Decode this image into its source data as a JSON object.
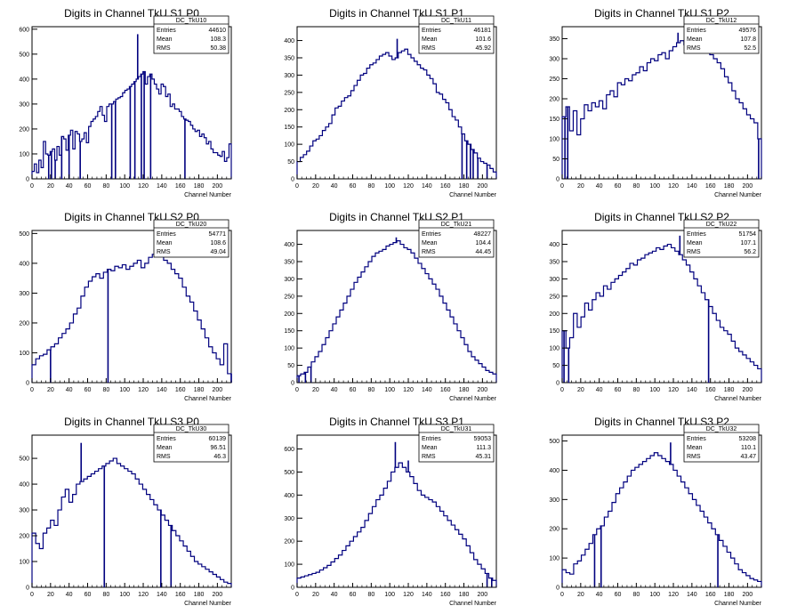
{
  "xlabel": "Channel Number",
  "stat_labels": [
    "Entries",
    "Mean",
    "RMS"
  ],
  "colors": {
    "hist": "#00007f",
    "frame": "#000000",
    "bg": "#ffffff"
  },
  "chart_data": [
    {
      "type": "bar",
      "title": "Digits in Channel TkU S1 P0",
      "hist_name": "DC_TkU10",
      "entries": "44610",
      "mean": "108.3",
      "rms": "50.38",
      "xlabel": "Channel Number",
      "xlim": [
        0,
        215
      ],
      "ylim": [
        0,
        610
      ],
      "xticks": [
        0,
        20,
        40,
        60,
        80,
        100,
        120,
        140,
        160,
        180,
        200
      ],
      "yticks": [
        0,
        100,
        200,
        300,
        400,
        500,
        600
      ],
      "values": [
        30,
        60,
        25,
        75,
        45,
        150,
        100,
        95,
        110,
        120,
        75,
        130,
        95,
        170,
        160,
        115,
        175,
        195,
        120,
        190,
        180,
        150,
        160,
        185,
        145,
        210,
        230,
        240,
        250,
        270,
        290,
        255,
        230,
        290,
        300,
        300,
        310,
        320,
        325,
        330,
        345,
        355,
        360,
        370,
        380,
        390,
        400,
        410,
        420,
        430,
        380,
        410,
        420,
        400,
        380,
        360,
        340,
        380,
        370,
        330,
        340,
        290,
        300,
        280,
        280,
        270,
        250,
        240,
        235,
        230,
        215,
        200,
        190,
        195,
        170,
        180,
        165,
        140,
        150,
        120,
        105,
        105,
        95,
        90,
        110,
        70,
        85,
        140
      ],
      "dips": [
        [
          18,
          0
        ],
        [
          21,
          0
        ],
        [
          25,
          0
        ],
        [
          32,
          0
        ],
        [
          40,
          0
        ],
        [
          52,
          0
        ],
        [
          86,
          0
        ],
        [
          90,
          0
        ],
        [
          106,
          0
        ],
        [
          111,
          0
        ],
        [
          118,
          0
        ],
        [
          121,
          0
        ],
        [
          128,
          0
        ],
        [
          165,
          0
        ]
      ],
      "spikes": [
        [
          114,
          580
        ]
      ]
    },
    {
      "type": "bar",
      "title": "Digits in Channel TkU S1 P1",
      "hist_name": "DC_TkU11",
      "entries": "46181",
      "mean": "101.6",
      "rms": "45.92",
      "xlabel": "Channel Number",
      "xlim": [
        0,
        215
      ],
      "ylim": [
        0,
        440
      ],
      "xticks": [
        0,
        20,
        40,
        60,
        80,
        100,
        120,
        140,
        160,
        180,
        200
      ],
      "yticks": [
        0,
        50,
        100,
        150,
        200,
        250,
        300,
        350,
        400
      ],
      "values": [
        50,
        62,
        70,
        80,
        95,
        110,
        115,
        125,
        140,
        150,
        160,
        185,
        205,
        210,
        225,
        235,
        240,
        255,
        270,
        285,
        300,
        305,
        320,
        330,
        335,
        345,
        355,
        360,
        365,
        355,
        345,
        350,
        365,
        370,
        375,
        360,
        350,
        340,
        330,
        320,
        315,
        300,
        290,
        275,
        250,
        245,
        230,
        220,
        200,
        180,
        170,
        150,
        130,
        110,
        100,
        85,
        75,
        60,
        50,
        45,
        40,
        30,
        20
      ],
      "dips": [
        [
          178,
          0
        ],
        [
          183,
          0
        ],
        [
          187,
          0
        ],
        [
          190,
          0
        ],
        [
          195,
          0
        ],
        [
          205,
          0
        ]
      ],
      "spikes": [
        [
          108,
          405
        ]
      ]
    },
    {
      "type": "bar",
      "title": "Digits in Channel TkU S1 P2",
      "hist_name": "DC_TkU12",
      "entries": "49576",
      "mean": "107.8",
      "rms": "52.5",
      "xlabel": "Channel Number",
      "xlim": [
        0,
        215
      ],
      "ylim": [
        0,
        380
      ],
      "xticks": [
        0,
        20,
        40,
        60,
        80,
        100,
        120,
        140,
        160,
        180,
        200
      ],
      "yticks": [
        0,
        50,
        100,
        150,
        200,
        250,
        300,
        350
      ],
      "values": [
        155,
        180,
        120,
        170,
        110,
        150,
        185,
        170,
        190,
        180,
        195,
        175,
        210,
        220,
        205,
        240,
        235,
        250,
        245,
        260,
        265,
        280,
        270,
        290,
        300,
        295,
        310,
        315,
        300,
        320,
        330,
        340,
        345,
        335,
        330,
        340,
        345,
        330,
        325,
        315,
        310,
        300,
        290,
        275,
        255,
        240,
        220,
        200,
        190,
        175,
        160,
        150,
        140,
        100
      ],
      "dips": [
        [
          3,
          0
        ],
        [
          6,
          0
        ],
        [
          212,
          0
        ]
      ],
      "spikes": [
        [
          125,
          365
        ]
      ]
    },
    {
      "type": "bar",
      "title": "Digits in Channel TkU S2 P0",
      "hist_name": "DC_TkU20",
      "entries": "54771",
      "mean": "108.6",
      "rms": "49.04",
      "xlabel": "Channel Number",
      "xlim": [
        0,
        215
      ],
      "ylim": [
        0,
        510
      ],
      "xticks": [
        0,
        20,
        40,
        60,
        80,
        100,
        120,
        140,
        160,
        180,
        200
      ],
      "yticks": [
        0,
        100,
        200,
        300,
        400,
        500
      ],
      "values": [
        60,
        80,
        90,
        95,
        110,
        120,
        130,
        150,
        165,
        180,
        200,
        230,
        250,
        290,
        320,
        340,
        355,
        365,
        350,
        370,
        380,
        375,
        390,
        385,
        395,
        380,
        390,
        400,
        410,
        385,
        400,
        420,
        430,
        440,
        430,
        410,
        400,
        380,
        365,
        350,
        320,
        290,
        270,
        240,
        210,
        180,
        150,
        120,
        100,
        80,
        60,
        130,
        30
      ],
      "dips": [
        [
          20,
          0
        ],
        [
          82,
          0
        ],
        [
          215,
          0
        ]
      ],
      "spikes": [
        [
          139,
          480
        ]
      ]
    },
    {
      "type": "bar",
      "title": "Digits in Channel TkU S2 P1",
      "hist_name": "DC_TkU21",
      "entries": "48227",
      "mean": "104.4",
      "rms": "44.45",
      "xlabel": "Channel Number",
      "xlim": [
        0,
        215
      ],
      "ylim": [
        0,
        440
      ],
      "xticks": [
        0,
        20,
        40,
        60,
        80,
        100,
        120,
        140,
        160,
        180,
        200
      ],
      "yticks": [
        0,
        50,
        100,
        150,
        200,
        250,
        300,
        350,
        400
      ],
      "values": [
        20,
        25,
        30,
        45,
        60,
        75,
        90,
        110,
        130,
        150,
        170,
        190,
        210,
        230,
        250,
        270,
        290,
        305,
        320,
        335,
        350,
        365,
        375,
        380,
        385,
        395,
        400,
        405,
        410,
        400,
        390,
        385,
        375,
        360,
        345,
        330,
        315,
        300,
        285,
        270,
        250,
        230,
        210,
        190,
        170,
        150,
        130,
        110,
        90,
        75,
        65,
        55,
        45,
        35,
        30,
        25
      ],
      "dips": [
        [
          2,
          0
        ],
        [
          9,
          0
        ],
        [
          15,
          0
        ]
      ],
      "spikes": [
        [
          107,
          420
        ]
      ]
    },
    {
      "type": "bar",
      "title": "Digits in Channel TkU S2 P2",
      "hist_name": "DC_TkU22",
      "entries": "51754",
      "mean": "107.1",
      "rms": "56.2",
      "xlabel": "Channel Number",
      "xlim": [
        0,
        215
      ],
      "ylim": [
        0,
        440
      ],
      "xticks": [
        0,
        20,
        40,
        60,
        80,
        100,
        120,
        140,
        160,
        180,
        200
      ],
      "yticks": [
        0,
        50,
        100,
        150,
        200,
        250,
        300,
        350,
        400
      ],
      "values": [
        150,
        100,
        130,
        200,
        160,
        190,
        230,
        210,
        240,
        260,
        250,
        280,
        270,
        290,
        300,
        310,
        320,
        330,
        345,
        340,
        355,
        360,
        370,
        375,
        380,
        390,
        385,
        395,
        400,
        390,
        380,
        370,
        355,
        340,
        320,
        300,
        280,
        260,
        240,
        220,
        200,
        180,
        160,
        150,
        140,
        120,
        100,
        90,
        80,
        70,
        60,
        50,
        40
      ],
      "dips": [
        [
          2,
          0
        ],
        [
          7,
          0
        ],
        [
          158,
          0
        ]
      ],
      "spikes": [
        [
          127,
          425
        ]
      ]
    },
    {
      "type": "bar",
      "title": "Digits in Channel TkU S3 P0",
      "hist_name": "DC_TkU30",
      "entries": "60139",
      "mean": "96.51",
      "rms": "46.3",
      "xlabel": "Channel Number",
      "xlim": [
        0,
        215
      ],
      "ylim": [
        0,
        590
      ],
      "xticks": [
        0,
        20,
        40,
        60,
        80,
        100,
        120,
        140,
        160,
        180,
        200
      ],
      "yticks": [
        0,
        100,
        200,
        300,
        400,
        500
      ],
      "values": [
        210,
        170,
        150,
        210,
        230,
        260,
        240,
        300,
        350,
        380,
        330,
        360,
        400,
        410,
        420,
        430,
        440,
        450,
        460,
        470,
        480,
        490,
        500,
        480,
        470,
        460,
        450,
        440,
        420,
        400,
        380,
        360,
        340,
        320,
        300,
        280,
        260,
        240,
        220,
        200,
        180,
        160,
        140,
        120,
        100,
        90,
        80,
        70,
        60,
        50,
        40,
        30,
        20,
        15
      ],
      "dips": [
        [
          78,
          0
        ],
        [
          139,
          0
        ],
        [
          150,
          0
        ]
      ],
      "spikes": [
        [
          53,
          560
        ]
      ]
    },
    {
      "type": "bar",
      "title": "Digits in Channel TkU S3 P1",
      "hist_name": "DC_TkU31",
      "entries": "59053",
      "mean": "111.3",
      "rms": "45.31",
      "xlabel": "Channel Number",
      "xlim": [
        0,
        215
      ],
      "ylim": [
        0,
        660
      ],
      "xticks": [
        0,
        20,
        40,
        60,
        80,
        100,
        120,
        140,
        160,
        180,
        200
      ],
      "yticks": [
        0,
        100,
        200,
        300,
        400,
        500,
        600
      ],
      "values": [
        40,
        45,
        50,
        55,
        60,
        65,
        75,
        85,
        95,
        110,
        125,
        140,
        160,
        180,
        200,
        220,
        240,
        260,
        290,
        320,
        350,
        380,
        400,
        430,
        460,
        500,
        520,
        540,
        520,
        500,
        480,
        450,
        420,
        400,
        390,
        380,
        370,
        350,
        330,
        310,
        290,
        270,
        250,
        230,
        210,
        180,
        150,
        120,
        100,
        80,
        60,
        40,
        30
      ],
      "dips": [
        [
          205,
          0
        ],
        [
          210,
          0
        ]
      ],
      "spikes": [
        [
          106,
          630
        ],
        [
          120,
          550
        ]
      ]
    },
    {
      "type": "bar",
      "title": "Digits in Channel TkU S3 P2",
      "hist_name": "DC_TkU32",
      "entries": "53208",
      "mean": "110.1",
      "rms": "43.47",
      "xlabel": "Channel Number",
      "xlim": [
        0,
        215
      ],
      "ylim": [
        0,
        520
      ],
      "xticks": [
        0,
        20,
        40,
        60,
        80,
        100,
        120,
        140,
        160,
        180,
        200
      ],
      "yticks": [
        0,
        100,
        200,
        300,
        400,
        500
      ],
      "values": [
        60,
        50,
        45,
        80,
        90,
        110,
        130,
        150,
        180,
        200,
        210,
        240,
        260,
        290,
        320,
        340,
        360,
        380,
        400,
        410,
        420,
        430,
        440,
        450,
        460,
        450,
        440,
        430,
        420,
        400,
        380,
        360,
        340,
        320,
        300,
        280,
        260,
        240,
        220,
        200,
        180,
        160,
        140,
        120,
        100,
        80,
        60,
        50,
        40,
        30,
        25,
        20
      ],
      "dips": [
        [
          35,
          0
        ],
        [
          42,
          0
        ],
        [
          168,
          0
        ]
      ],
      "spikes": [
        [
          117,
          495
        ]
      ]
    }
  ]
}
